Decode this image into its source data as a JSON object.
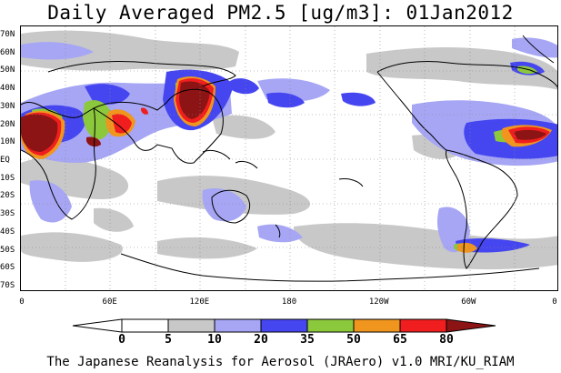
{
  "title": "Daily Averaged PM2.5 [ug/m3]: 01Jan2012",
  "footer": "The Japanese Reanalysis for Aerosol (JRAero) v1.0 MRI/KU_RIAM",
  "map": {
    "lat_labels": [
      "70N",
      "60N",
      "50N",
      "40N",
      "30N",
      "20N",
      "10N",
      "EQ",
      "10S",
      "20S",
      "30S",
      "40S",
      "50S",
      "60S",
      "70S"
    ],
    "lon_labels": [
      "0",
      "60E",
      "120E",
      "180",
      "120W",
      "60W",
      "0"
    ],
    "lat_range": [
      -75,
      75
    ],
    "lon_range": [
      0,
      360
    ],
    "gridlines": "dotted, every 30 degrees longitude and 10 degrees latitude"
  },
  "colorbar": {
    "labels": [
      "0",
      "5",
      "10",
      "20",
      "35",
      "50",
      "65",
      "80"
    ],
    "bins": [
      {
        "range": "<0",
        "color": "#ffffff"
      },
      {
        "range": "0-5",
        "color": "#ffffff"
      },
      {
        "range": "5-10",
        "color": "#c8c8c8"
      },
      {
        "range": "10-20",
        "color": "#a6a6f5"
      },
      {
        "range": "20-35",
        "color": "#4646f0"
      },
      {
        "range": "35-50",
        "color": "#8cc83c"
      },
      {
        "range": "50-65",
        "color": "#f0961e"
      },
      {
        "range": "65-80",
        "color": "#f01e1e"
      },
      {
        "range": ">80",
        "color": "#8c1414"
      }
    ]
  },
  "colors": {
    "land_outline": "#000000",
    "gray": "#c8c8c8",
    "lightblue": "#a6a6f5",
    "blue": "#4646f0",
    "green": "#8cc83c",
    "orange": "#f0961e",
    "red": "#f01e1e",
    "darkred": "#8c1414"
  }
}
